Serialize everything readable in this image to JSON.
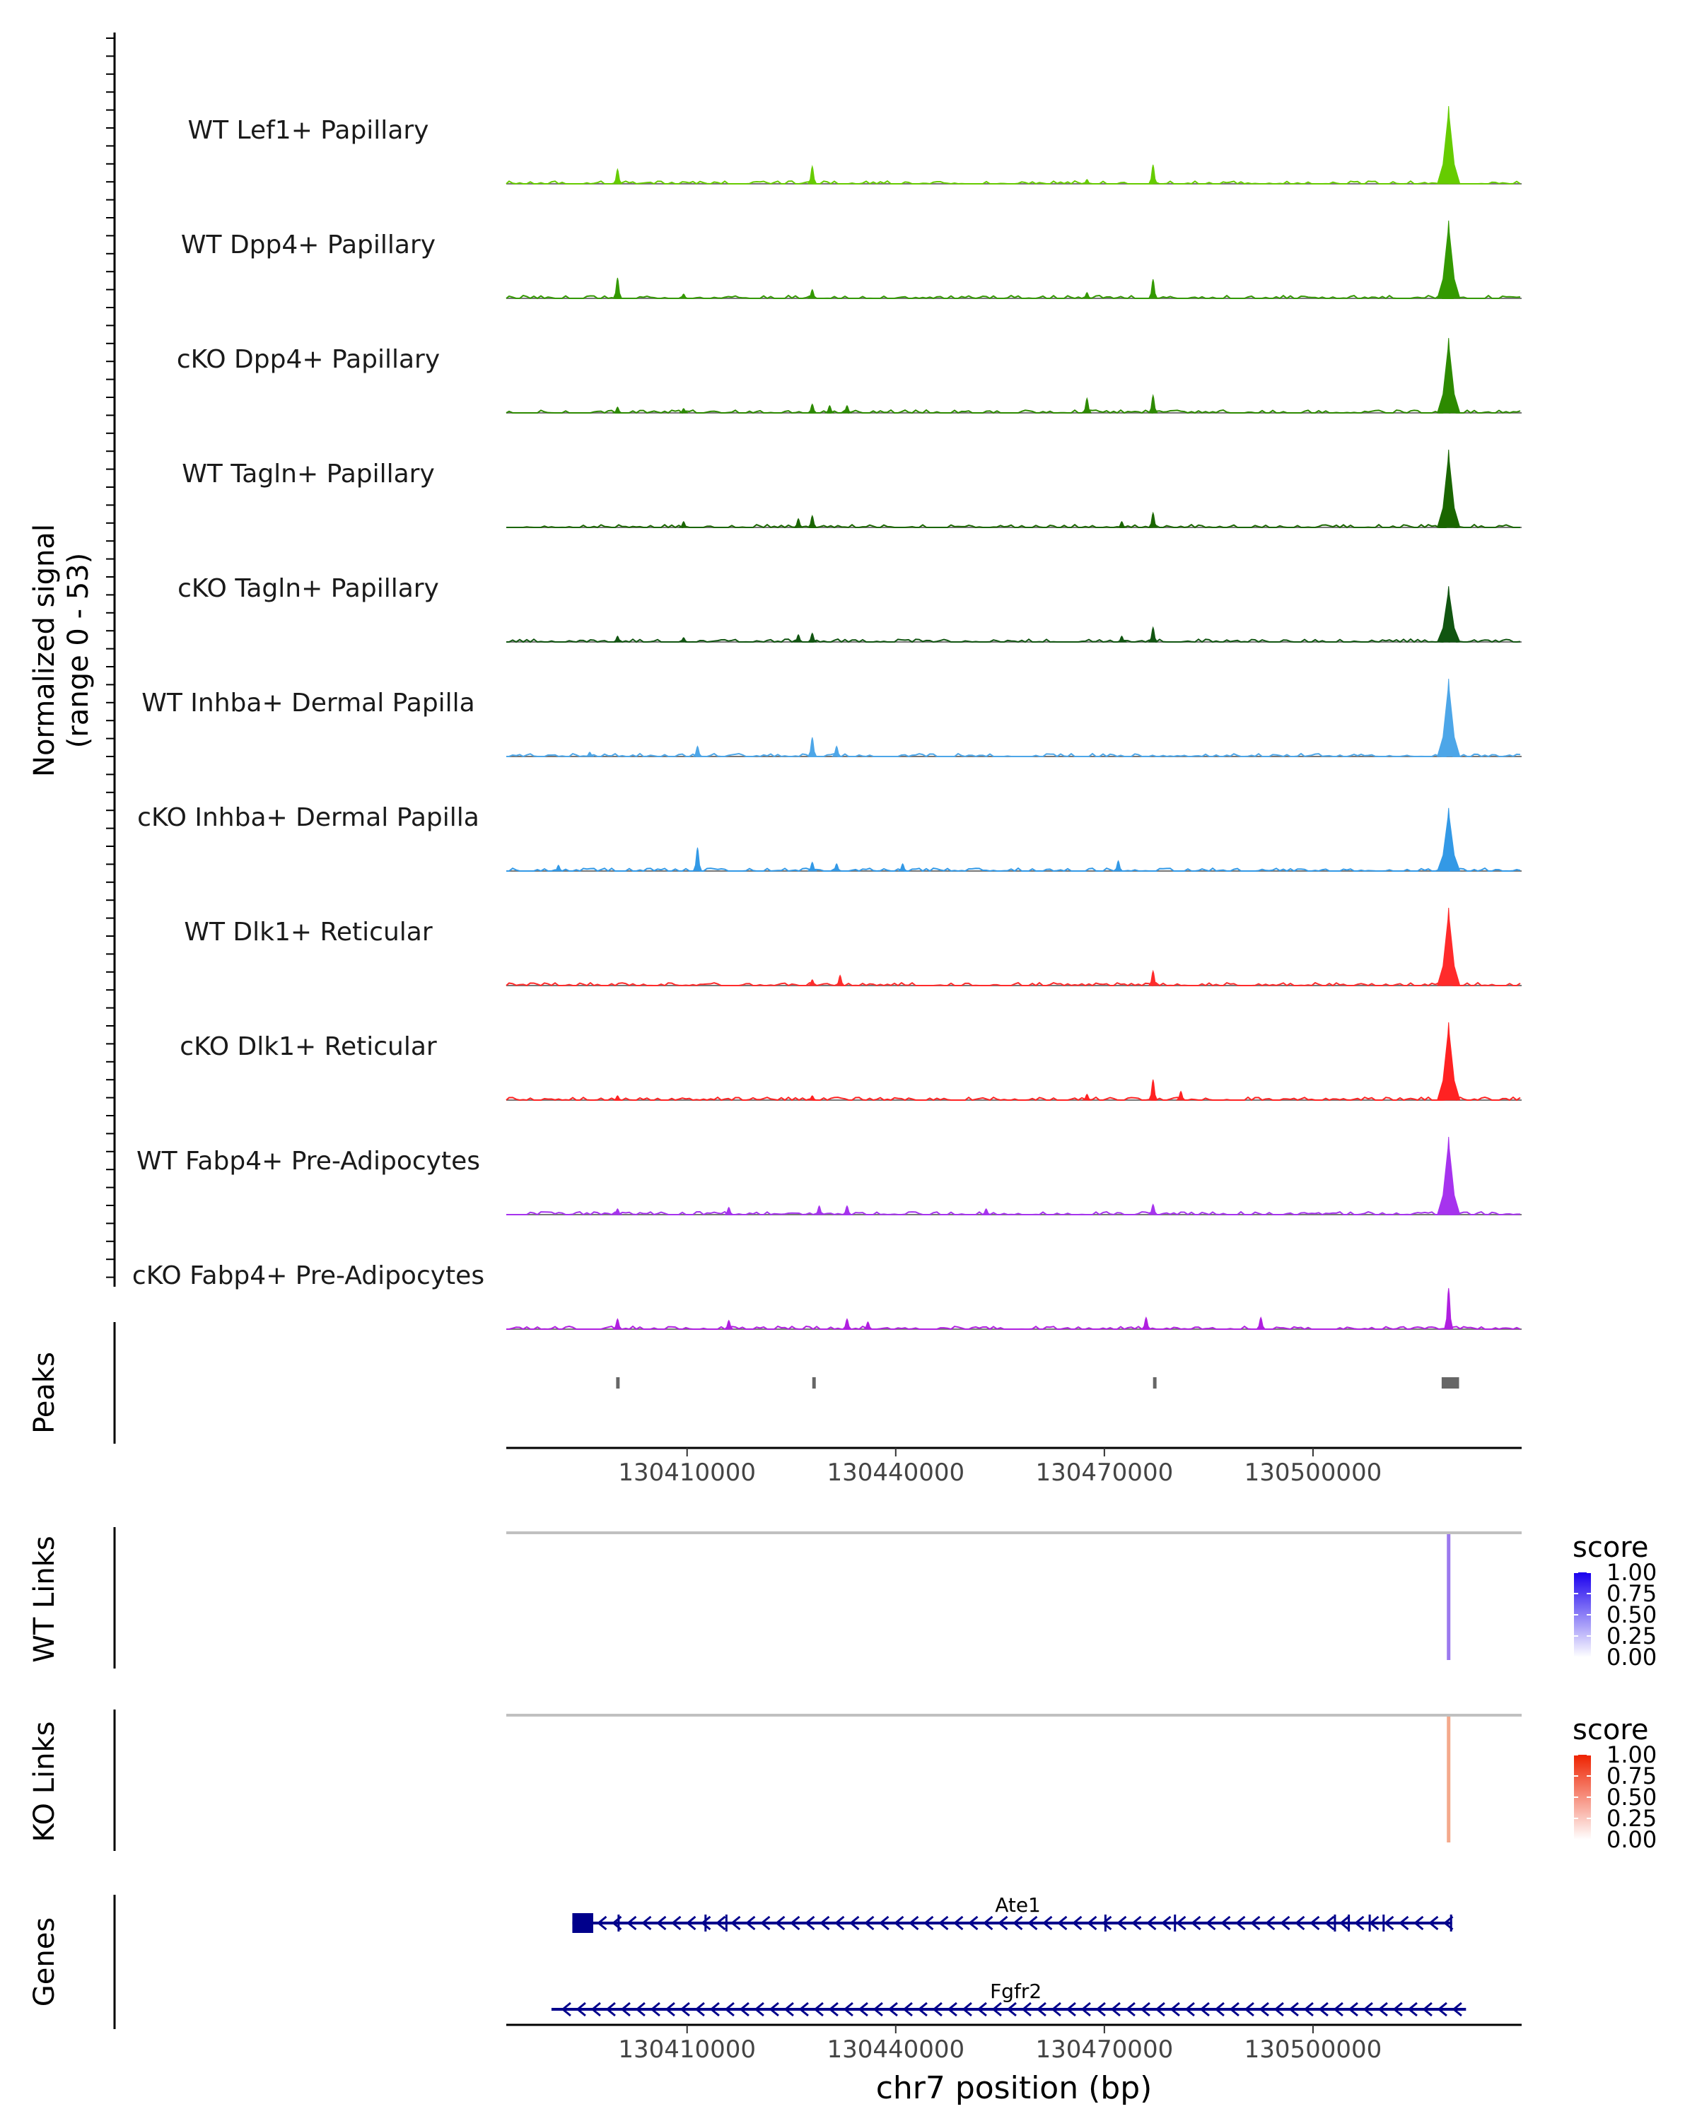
{
  "chart_data": {
    "type": "genome-browser-coverage",
    "region": {
      "chrom": "chr7",
      "start": 130384000,
      "end": 130530000
    },
    "coverage": {
      "ylabel_line1": "Normalized signal",
      "ylabel_line2": "(range 0 - 53)",
      "ylim": [
        0,
        53
      ],
      "tracks": [
        {
          "name": "WT Lef1+ Papillary",
          "color": "#66cc00",
          "peaks": [
            [
              130400000,
              10
            ],
            [
              130428000,
              12
            ],
            [
              130467500,
              3
            ],
            [
              130477000,
              13
            ],
            [
              130519500,
              53
            ]
          ]
        },
        {
          "name": "WT Dpp4+ Papillary",
          "color": "#339900",
          "peaks": [
            [
              130400000,
              14
            ],
            [
              130409500,
              3
            ],
            [
              130428000,
              6
            ],
            [
              130467500,
              4
            ],
            [
              130477000,
              13
            ],
            [
              130519500,
              53
            ]
          ]
        },
        {
          "name": "cKO Dpp4+ Papillary",
          "color": "#2d8a00",
          "peaks": [
            [
              130400000,
              4
            ],
            [
              130409500,
              3
            ],
            [
              130428000,
              6
            ],
            [
              130430500,
              5
            ],
            [
              130433000,
              5
            ],
            [
              130467500,
              10
            ],
            [
              130477000,
              12
            ],
            [
              130519500,
              51
            ]
          ]
        },
        {
          "name": "WT Tagln+ Papillary",
          "color": "#1a6600",
          "peaks": [
            [
              130409500,
              4
            ],
            [
              130428000,
              8
            ],
            [
              130426000,
              6
            ],
            [
              130472500,
              4
            ],
            [
              130477000,
              10
            ],
            [
              130519500,
              53
            ]
          ]
        },
        {
          "name": "cKO Tagln+ Papillary",
          "color": "#115511",
          "peaks": [
            [
              130400000,
              4
            ],
            [
              130409500,
              3
            ],
            [
              130428000,
              6
            ],
            [
              130426000,
              5
            ],
            [
              130472500,
              4
            ],
            [
              130477000,
              10
            ],
            [
              130519500,
              38
            ]
          ]
        },
        {
          "name": "WT Inhba+ Dermal Papilla",
          "color": "#4da6e8",
          "peaks": [
            [
              130396000,
              3
            ],
            [
              130411500,
              7
            ],
            [
              130428000,
              13
            ],
            [
              130431500,
              7
            ],
            [
              130519500,
              53
            ]
          ]
        },
        {
          "name": "cKO Inhba+ Dermal Papilla",
          "color": "#3399e6",
          "peaks": [
            [
              130391500,
              4
            ],
            [
              130411500,
              16
            ],
            [
              130428000,
              6
            ],
            [
              130431500,
              5
            ],
            [
              130441000,
              5
            ],
            [
              130472000,
              7
            ],
            [
              130519500,
              43
            ]
          ]
        },
        {
          "name": "WT Dlk1+ Reticular",
          "color": "#ff2b2b",
          "peaks": [
            [
              130428000,
              4
            ],
            [
              130432000,
              7
            ],
            [
              130477000,
              10
            ],
            [
              130519500,
              53
            ]
          ]
        },
        {
          "name": "cKO Dlk1+ Reticular",
          "color": "#ff2222",
          "peaks": [
            [
              130400000,
              3
            ],
            [
              130428000,
              3
            ],
            [
              130467500,
              4
            ],
            [
              130477000,
              14
            ],
            [
              130481000,
              6
            ],
            [
              130519500,
              53
            ]
          ]
        },
        {
          "name": "WT Fabp4+ Pre-Adipocytes",
          "color": "#a633ee",
          "peaks": [
            [
              130400000,
              4
            ],
            [
              130416000,
              5
            ],
            [
              130429000,
              6
            ],
            [
              130433000,
              6
            ],
            [
              130453000,
              4
            ],
            [
              130477000,
              7
            ],
            [
              130519500,
              53
            ]
          ]
        },
        {
          "name": "cKO Fabp4+ Pre-Adipocytes",
          "color": "#b01fe0",
          "peaks": [
            [
              130400000,
              7
            ],
            [
              130416000,
              6
            ],
            [
              130433000,
              7
            ],
            [
              130436000,
              5
            ],
            [
              130476000,
              8
            ],
            [
              130492500,
              8
            ],
            [
              130519500,
              28
            ]
          ]
        }
      ]
    },
    "peaks_track": {
      "label": "Peaks",
      "color": "#666666",
      "regions": [
        [
          130399800,
          130400300
        ],
        [
          130428000,
          130428500
        ],
        [
          130477000,
          130477500
        ],
        [
          130518500,
          130521000
        ]
      ]
    },
    "x_axis": {
      "ticks": [
        130410000,
        130440000,
        130470000,
        130500000
      ],
      "tick_labels": [
        "130410000",
        "130440000",
        "130470000",
        "130500000"
      ],
      "xlabel": "chr7 position (bp)"
    },
    "links": [
      {
        "label": "WT Links",
        "legend_title": "score",
        "legend_ticks": [
          "1.00",
          "0.75",
          "0.50",
          "0.25",
          "0.00"
        ],
        "color_low": "#ffffff",
        "color_high": "#1a00ee",
        "link_color": "#9b79ee",
        "link_position": 130519500,
        "score": 0.55
      },
      {
        "label": "KO Links",
        "legend_title": "score",
        "legend_ticks": [
          "1.00",
          "0.75",
          "0.50",
          "0.25",
          "0.00"
        ],
        "color_low": "#ffffff",
        "color_high": "#ee2200",
        "link_color": "#f4a98c",
        "link_position": 130519500,
        "score": 0.45
      }
    ],
    "genes_track": {
      "label": "Genes",
      "color": "#00008b",
      "genes": [
        {
          "name": "Ate1",
          "start": 130393500,
          "end": 130520000,
          "strand": "-",
          "exons": [
            [
              130393500,
              130396500
            ],
            [
              130400000,
              130400200
            ],
            [
              130412500,
              130412700
            ],
            [
              130415500,
              130415700
            ],
            [
              130470000,
              130470200
            ],
            [
              130480000,
              130480200
            ],
            [
              130503000,
              130503200
            ],
            [
              130505000,
              130505200
            ],
            [
              130508000,
              130508200
            ],
            [
              130510000,
              130510200
            ],
            [
              130519700,
              130520000
            ]
          ]
        },
        {
          "name": "Fgfr2",
          "start": 130390500,
          "end": 130522000,
          "strand": "-",
          "exons": []
        }
      ]
    }
  }
}
